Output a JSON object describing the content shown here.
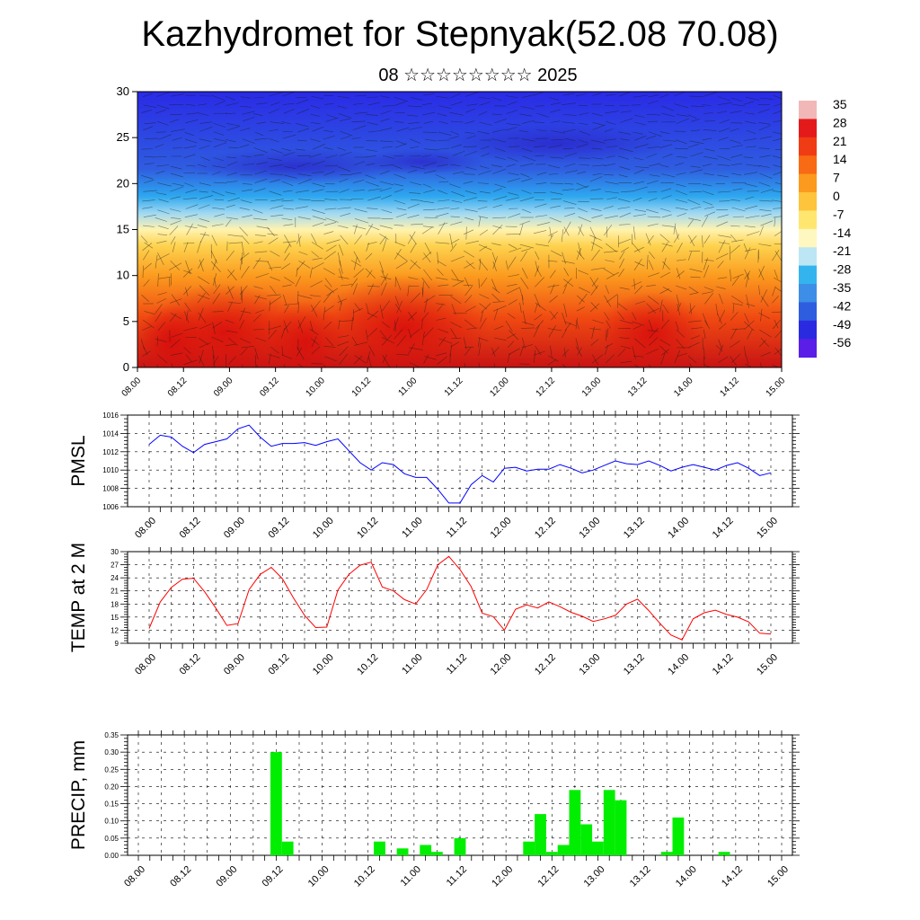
{
  "header": {
    "title": "Kazhydromet for Stepnyak(52.08 70.08)",
    "subtitle": "08 ☆☆☆☆☆☆☆☆ 2025"
  },
  "time_labels": [
    "08.00",
    "08.12",
    "09.00",
    "09.12",
    "10.00",
    "10.12",
    "11.00",
    "11.12",
    "12.00",
    "12.12",
    "13.00",
    "13.12",
    "14.00",
    "14.12",
    "15.00"
  ],
  "chart_data": [
    {
      "type": "heatmap",
      "title": "",
      "xlabel": "",
      "ylabel": "",
      "ylim": [
        0,
        30
      ],
      "yticks": [
        0,
        5,
        10,
        15,
        20,
        25,
        30
      ],
      "x": [
        "08.00",
        "08.12",
        "09.00",
        "09.12",
        "10.00",
        "10.12",
        "11.00",
        "11.12",
        "12.00",
        "12.12",
        "13.00",
        "13.12",
        "14.00",
        "14.12",
        "15.00"
      ],
      "colorbar": {
        "labels": [
          "35",
          "28",
          "21",
          "14",
          "7",
          "0",
          "-7",
          "-14",
          "-21",
          "-28",
          "-35",
          "-42",
          "-49",
          "-56"
        ],
        "colors": [
          "#f2b8b8",
          "#e41a1a",
          "#f03c14",
          "#f86a14",
          "#fb9a1e",
          "#fdc43c",
          "#ffe66e",
          "#fff7c0",
          "#bde6f5",
          "#34b4ef",
          "#3c8ee6",
          "#2f5de0",
          "#2a2ae0",
          "#5a1ee8"
        ]
      },
      "note_overlay": "wind streamlines"
    },
    {
      "type": "line",
      "ylabel": "PMSL",
      "ylim": [
        1006,
        1016
      ],
      "yticks": [
        1006,
        1008,
        1010,
        1012,
        1014,
        1016
      ],
      "color": "#0000ff",
      "x": [
        "08.00",
        "08.03",
        "08.06",
        "08.09",
        "08.12",
        "08.15",
        "08.18",
        "08.21",
        "09.00",
        "09.03",
        "09.06",
        "09.09",
        "09.12",
        "09.15",
        "09.18",
        "09.21",
        "10.00",
        "10.03",
        "10.06",
        "10.09",
        "10.12",
        "10.15",
        "10.18",
        "10.21",
        "11.00",
        "11.03",
        "11.06",
        "11.09",
        "11.12",
        "11.15",
        "11.18",
        "11.21",
        "12.00",
        "12.03",
        "12.06",
        "12.09",
        "12.12",
        "12.15",
        "12.18",
        "12.21",
        "13.00",
        "13.03",
        "13.06",
        "13.09",
        "13.12",
        "13.15",
        "13.18",
        "13.21",
        "14.00",
        "14.03",
        "14.06",
        "14.09",
        "14.12",
        "14.15",
        "14.18",
        "14.21",
        "15.00"
      ],
      "values": [
        1012.8,
        1013.8,
        1013.6,
        1012.6,
        1011.9,
        1012.8,
        1013.1,
        1013.4,
        1014.5,
        1014.9,
        1013.6,
        1012.6,
        1012.9,
        1012.9,
        1013.0,
        1012.7,
        1013.1,
        1013.4,
        1012.1,
        1010.8,
        1010.0,
        1010.8,
        1010.6,
        1009.6,
        1009.2,
        1009.2,
        1007.9,
        1006.4,
        1006.4,
        1008.4,
        1009.4,
        1008.7,
        1010.2,
        1010.3,
        1009.9,
        1010.1,
        1010.1,
        1010.6,
        1010.2,
        1009.7,
        1010.0,
        1010.5,
        1011.0,
        1010.7,
        1010.6,
        1011.0,
        1010.5,
        1009.9,
        1010.3,
        1010.6,
        1010.3,
        1010.0,
        1010.5,
        1010.8,
        1010.2,
        1009.4,
        1009.7
      ]
    },
    {
      "type": "line",
      "ylabel": "TEMP at 2 M",
      "ylim": [
        9,
        30
      ],
      "yticks": [
        9,
        12,
        15,
        18,
        21,
        24,
        27,
        30
      ],
      "color": "#ff0000",
      "x": [
        "08.00",
        "08.03",
        "08.06",
        "08.09",
        "08.12",
        "08.15",
        "08.18",
        "08.21",
        "09.00",
        "09.03",
        "09.06",
        "09.09",
        "09.12",
        "09.15",
        "09.18",
        "09.21",
        "10.00",
        "10.03",
        "10.06",
        "10.09",
        "10.12",
        "10.15",
        "10.18",
        "10.21",
        "11.00",
        "11.03",
        "11.06",
        "11.09",
        "11.12",
        "11.15",
        "11.18",
        "11.21",
        "12.00",
        "12.03",
        "12.06",
        "12.09",
        "12.12",
        "12.15",
        "12.18",
        "12.21",
        "13.00",
        "13.03",
        "13.06",
        "13.09",
        "13.12",
        "13.15",
        "13.18",
        "13.21",
        "14.00",
        "14.03",
        "14.06",
        "14.09",
        "14.12",
        "14.15",
        "14.18",
        "14.21",
        "15.00"
      ],
      "values": [
        12.4,
        18.5,
        21.8,
        23.7,
        23.9,
        20.8,
        17.1,
        13.1,
        13.5,
        21.3,
        24.8,
        26.4,
        23.8,
        19.4,
        15.4,
        12.6,
        12.7,
        21.2,
        24.8,
        26.9,
        27.6,
        21.9,
        21.0,
        19.0,
        18.0,
        21.3,
        27.0,
        28.9,
        25.9,
        22.0,
        15.9,
        15.1,
        12.0,
        16.8,
        17.8,
        17.1,
        18.5,
        17.4,
        16.1,
        15.2,
        14.0,
        14.6,
        15.4,
        18.0,
        19.1,
        16.5,
        13.6,
        10.9,
        9.8,
        14.6,
        16.0,
        16.6,
        15.6,
        15.0,
        13.9,
        11.3,
        11.1
      ]
    },
    {
      "type": "bar",
      "ylabel": "PRECIP, mm",
      "ylim": [
        0,
        0.35
      ],
      "yticks": [
        "0.00",
        "0.05",
        "0.10",
        "0.15",
        "0.20",
        "0.25",
        "0.30",
        "0.35"
      ],
      "color": "#00ee00",
      "x": [
        "08.00",
        "08.03",
        "08.06",
        "08.09",
        "08.12",
        "08.15",
        "08.18",
        "08.21",
        "09.00",
        "09.03",
        "09.06",
        "09.09",
        "09.12",
        "09.15",
        "09.18",
        "09.21",
        "10.00",
        "10.03",
        "10.06",
        "10.09",
        "10.12",
        "10.15",
        "10.18",
        "10.21",
        "11.00",
        "11.03",
        "11.06",
        "11.09",
        "11.12",
        "11.15",
        "11.18",
        "11.21",
        "12.00",
        "12.03",
        "12.06",
        "12.09",
        "12.12",
        "12.15",
        "12.18",
        "12.21",
        "13.00",
        "13.03",
        "13.06",
        "13.09",
        "13.12",
        "13.15",
        "13.18",
        "13.21",
        "14.00",
        "14.03",
        "14.06",
        "14.09",
        "14.12",
        "14.15",
        "14.18",
        "14.21"
      ],
      "values": [
        0,
        0,
        0,
        0,
        0,
        0,
        0,
        0,
        0,
        0,
        0,
        0.3,
        0.04,
        0,
        0,
        0,
        0,
        0,
        0,
        0,
        0.04,
        0,
        0.02,
        0,
        0.03,
        0.01,
        0,
        0.05,
        0,
        0,
        0,
        0,
        0,
        0.04,
        0.12,
        0.01,
        0.03,
        0.19,
        0.09,
        0.04,
        0.19,
        0.16,
        0,
        0,
        0,
        0.01,
        0.11,
        0,
        0,
        0,
        0.01,
        0,
        0,
        0,
        0,
        0
      ]
    }
  ]
}
